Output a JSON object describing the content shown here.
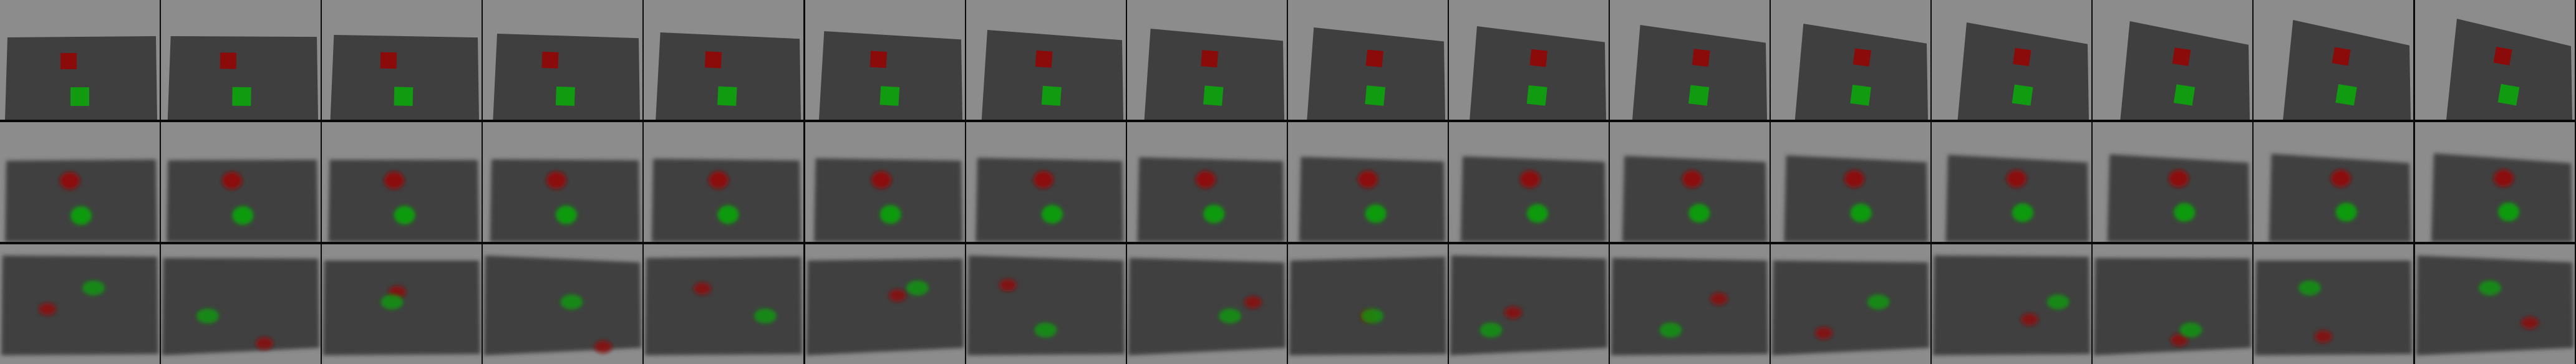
{
  "figure": {
    "rows": [
      {
        "kind": "ground-truth-frames",
        "rendering": "sharp",
        "frame_count": 16
      },
      {
        "kind": "predicted-frames",
        "rendering": "blurry",
        "frame_count": 16
      },
      {
        "kind": "predicted-frames-noisy",
        "rendering": "noisy",
        "frame_count": 16
      }
    ],
    "colors": {
      "background": "#8c8c8c",
      "table": "#3f3f3f",
      "red_object": "#8b0a0a",
      "green_object": "#119b11",
      "divider": "#0a0a0a"
    }
  }
}
